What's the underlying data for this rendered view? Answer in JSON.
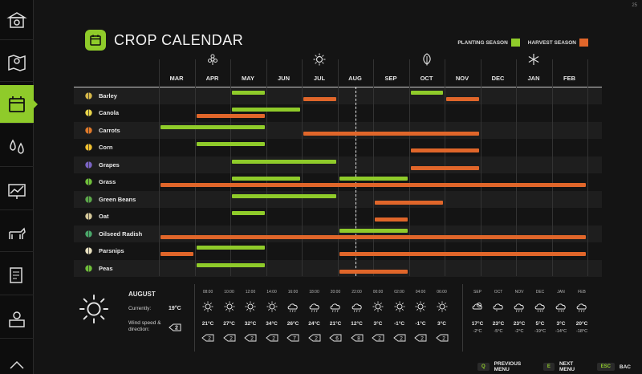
{
  "corner_number": "25",
  "title": "CROP CALENDAR",
  "legend": {
    "planting_label": "PLANTING SEASON",
    "harvest_label": "HARVEST SEASON",
    "planting_color": "#8fcb2a",
    "harvest_color": "#e0662a"
  },
  "sidebar": [
    {
      "name": "finances-icon"
    },
    {
      "name": "map-icon"
    },
    {
      "name": "calendar-icon",
      "active": true
    },
    {
      "name": "weather-icon"
    },
    {
      "name": "price-chart-icon"
    },
    {
      "name": "animals-icon"
    },
    {
      "name": "contracts-icon"
    },
    {
      "name": "production-icon"
    },
    {
      "name": "more-icon"
    }
  ],
  "months": [
    "MAR",
    "APR",
    "MAY",
    "JUN",
    "JUL",
    "AUG",
    "SEP",
    "OCT",
    "NOV",
    "DEC",
    "JAN",
    "FEB"
  ],
  "season_icons": [
    "spring-flower-icon",
    "summer-sun-icon",
    "autumn-leaf-icon",
    "winter-snowflake-icon"
  ],
  "current_month": "AUG",
  "crops": [
    {
      "name": "Barley",
      "icon": "barley-icon",
      "plant": [
        [
          2,
          3
        ]
      ],
      "harvest": [
        [
          4,
          5
        ],
        [
          8,
          9
        ]
      ],
      "plant_extra": [
        [
          7,
          8
        ]
      ]
    },
    {
      "name": "Canola",
      "icon": "canola-icon",
      "plant": [
        [
          2,
          4
        ]
      ],
      "harvest": [
        [
          1,
          3
        ]
      ]
    },
    {
      "name": "Carrots",
      "icon": "carrot-icon",
      "plant": [
        [
          0,
          3
        ]
      ],
      "harvest": [
        [
          4,
          9
        ]
      ]
    },
    {
      "name": "Corn",
      "icon": "corn-icon",
      "plant": [
        [
          1,
          3
        ]
      ],
      "harvest": [
        [
          7,
          9
        ]
      ]
    },
    {
      "name": "Grapes",
      "icon": "grapes-icon",
      "plant": [
        [
          2,
          5
        ]
      ],
      "harvest": [
        [
          7,
          9
        ]
      ]
    },
    {
      "name": "Grass",
      "icon": "grass-icon",
      "plant": [
        [
          2,
          4
        ],
        [
          5,
          7
        ]
      ],
      "harvest": [
        [
          0,
          12
        ]
      ]
    },
    {
      "name": "Green Beans",
      "icon": "beans-icon",
      "plant": [
        [
          2,
          5
        ]
      ],
      "harvest": [
        [
          6,
          8
        ]
      ]
    },
    {
      "name": "Oat",
      "icon": "oat-icon",
      "plant": [
        [
          2,
          3
        ]
      ],
      "harvest": [
        [
          6,
          7
        ]
      ]
    },
    {
      "name": "Oilseed Radish",
      "icon": "radish-icon",
      "plant": [
        [
          5,
          7
        ]
      ],
      "harvest": [
        [
          0,
          12
        ]
      ]
    },
    {
      "name": "Parsnips",
      "icon": "parsnip-icon",
      "plant": [
        [
          1,
          3
        ]
      ],
      "harvest": [
        [
          0,
          1
        ],
        [
          5,
          12
        ]
      ]
    },
    {
      "name": "Peas",
      "icon": "peas-icon",
      "plant": [
        [
          1,
          3
        ]
      ],
      "harvest": [
        [
          5,
          7
        ]
      ]
    }
  ],
  "weather": {
    "month": "AUGUST",
    "currently_label": "Currently:",
    "currently_value": "19°C",
    "wind_label": "Wind speed & direction:",
    "wind_value": "2",
    "hours": [
      {
        "time": "08:00",
        "temp": "21°C",
        "icon": "sun-icon",
        "wind": "2"
      },
      {
        "time": "10:00",
        "temp": "27°C",
        "icon": "sun-icon",
        "wind": "2"
      },
      {
        "time": "12:00",
        "temp": "32°C",
        "icon": "sun-icon",
        "wind": "2"
      },
      {
        "time": "14:00",
        "temp": "34°C",
        "icon": "sun-icon",
        "wind": "2"
      },
      {
        "time": "16:00",
        "temp": "26°C",
        "icon": "rain-cloud-icon",
        "wind": "7"
      },
      {
        "time": "18:00",
        "temp": "24°C",
        "icon": "rain-cloud-icon",
        "wind": "2"
      },
      {
        "time": "20:00",
        "temp": "21°C",
        "icon": "rain-cloud-icon",
        "wind": "6"
      },
      {
        "time": "22:00",
        "temp": "12°C",
        "icon": "rain-cloud-icon",
        "wind": "8"
      },
      {
        "time": "00:00",
        "temp": "3°C",
        "icon": "sun-icon",
        "wind": "2"
      },
      {
        "time": "02:00",
        "temp": "-1°C",
        "icon": "sun-icon",
        "wind": "2"
      },
      {
        "time": "04:00",
        "temp": "-1°C",
        "icon": "sun-icon",
        "wind": "2"
      },
      {
        "time": "06:00",
        "temp": "3°C",
        "icon": "sun-icon",
        "wind": "2"
      }
    ],
    "forecast": [
      {
        "month": "SEP",
        "hi": "17°C",
        "lo": "-2°C",
        "icon": "partly-cloudy-icon"
      },
      {
        "month": "OCT",
        "hi": "23°C",
        "lo": "-5°C",
        "icon": "cloud-icon"
      },
      {
        "month": "NOV",
        "hi": "23°C",
        "lo": "-2°C",
        "icon": "rain-cloud-icon"
      },
      {
        "month": "DEC",
        "hi": "5°C",
        "lo": "-19°C",
        "icon": "snow-cloud-icon"
      },
      {
        "month": "JAN",
        "hi": "3°C",
        "lo": "-14°C",
        "icon": "snow-cloud-icon"
      },
      {
        "month": "FEB",
        "hi": "20°C",
        "lo": "-18°C",
        "icon": "rain-cloud-icon"
      }
    ]
  },
  "footer": [
    {
      "key": "Q",
      "label": "PREVIOUS MENU"
    },
    {
      "key": "E",
      "label": "NEXT MENU"
    },
    {
      "key": "ESC",
      "label": "BAC"
    }
  ]
}
